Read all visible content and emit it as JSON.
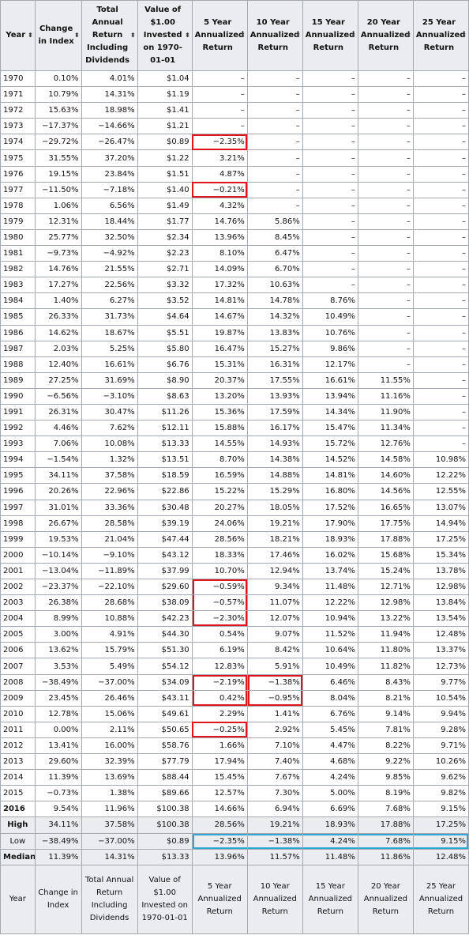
{
  "headers": [
    "Year",
    "Change in Index",
    "Total Annual Return Including Dividends",
    "Value of $1.00 Invested on 1970-01-01",
    "5 Year Annualized Return",
    "10 Year Annualized Return",
    "15 Year Annualized Return",
    "20 Year Annualized Return",
    "25 Year Annualized Return"
  ],
  "sort_icon": "sort-arrows-icon",
  "rows": [
    [
      "1970",
      "0.10%",
      "4.01%",
      "$1.04",
      "–",
      "–",
      "–",
      "–",
      "–"
    ],
    [
      "1971",
      "10.79%",
      "14.31%",
      "$1.19",
      "–",
      "–",
      "–",
      "–",
      "–"
    ],
    [
      "1972",
      "15.63%",
      "18.98%",
      "$1.41",
      "–",
      "–",
      "–",
      "–",
      "–"
    ],
    [
      "1973",
      "−17.37%",
      "−14.66%",
      "$1.21",
      "–",
      "–",
      "–",
      "–",
      "–"
    ],
    [
      "1974",
      "−29.72%",
      "−26.47%",
      "$0.89",
      "−2.35%",
      "–",
      "–",
      "–",
      "–"
    ],
    [
      "1975",
      "31.55%",
      "37.20%",
      "$1.22",
      "3.21%",
      "–",
      "–",
      "–",
      "–"
    ],
    [
      "1976",
      "19.15%",
      "23.84%",
      "$1.51",
      "4.87%",
      "–",
      "–",
      "–",
      "–"
    ],
    [
      "1977",
      "−11.50%",
      "−7.18%",
      "$1.40",
      "−0.21%",
      "–",
      "–",
      "–",
      "–"
    ],
    [
      "1978",
      "1.06%",
      "6.56%",
      "$1.49",
      "4.32%",
      "–",
      "–",
      "–",
      "–"
    ],
    [
      "1979",
      "12.31%",
      "18.44%",
      "$1.77",
      "14.76%",
      "5.86%",
      "–",
      "–",
      "–"
    ],
    [
      "1980",
      "25.77%",
      "32.50%",
      "$2.34",
      "13.96%",
      "8.45%",
      "–",
      "–",
      "–"
    ],
    [
      "1981",
      "−9.73%",
      "−4.92%",
      "$2.23",
      "8.10%",
      "6.47%",
      "–",
      "–",
      "–"
    ],
    [
      "1982",
      "14.76%",
      "21.55%",
      "$2.71",
      "14.09%",
      "6.70%",
      "–",
      "–",
      "–"
    ],
    [
      "1983",
      "17.27%",
      "22.56%",
      "$3.32",
      "17.32%",
      "10.63%",
      "–",
      "–",
      "–"
    ],
    [
      "1984",
      "1.40%",
      "6.27%",
      "$3.52",
      "14.81%",
      "14.78%",
      "8.76%",
      "–",
      "–"
    ],
    [
      "1985",
      "26.33%",
      "31.73%",
      "$4.64",
      "14.67%",
      "14.32%",
      "10.49%",
      "–",
      "–"
    ],
    [
      "1986",
      "14.62%",
      "18.67%",
      "$5.51",
      "19.87%",
      "13.83%",
      "10.76%",
      "–",
      "–"
    ],
    [
      "1987",
      "2.03%",
      "5.25%",
      "$5.80",
      "16.47%",
      "15.27%",
      "9.86%",
      "–",
      "–"
    ],
    [
      "1988",
      "12.40%",
      "16.61%",
      "$6.76",
      "15.31%",
      "16.31%",
      "12.17%",
      "–",
      "–"
    ],
    [
      "1989",
      "27.25%",
      "31.69%",
      "$8.90",
      "20.37%",
      "17.55%",
      "16.61%",
      "11.55%",
      "–"
    ],
    [
      "1990",
      "−6.56%",
      "−3.10%",
      "$8.63",
      "13.20%",
      "13.93%",
      "13.94%",
      "11.16%",
      "–"
    ],
    [
      "1991",
      "26.31%",
      "30.47%",
      "$11.26",
      "15.36%",
      "17.59%",
      "14.34%",
      "11.90%",
      "–"
    ],
    [
      "1992",
      "4.46%",
      "7.62%",
      "$12.11",
      "15.88%",
      "16.17%",
      "15.47%",
      "11.34%",
      "–"
    ],
    [
      "1993",
      "7.06%",
      "10.08%",
      "$13.33",
      "14.55%",
      "14.93%",
      "15.72%",
      "12.76%",
      "–"
    ],
    [
      "1994",
      "−1.54%",
      "1.32%",
      "$13.51",
      "8.70%",
      "14.38%",
      "14.52%",
      "14.58%",
      "10.98%"
    ],
    [
      "1995",
      "34.11%",
      "37.58%",
      "$18.59",
      "16.59%",
      "14.88%",
      "14.81%",
      "14.60%",
      "12.22%"
    ],
    [
      "1996",
      "20.26%",
      "22.96%",
      "$22.86",
      "15.22%",
      "15.29%",
      "16.80%",
      "14.56%",
      "12.55%"
    ],
    [
      "1997",
      "31.01%",
      "33.36%",
      "$30.48",
      "20.27%",
      "18.05%",
      "17.52%",
      "16.65%",
      "13.07%"
    ],
    [
      "1998",
      "26.67%",
      "28.58%",
      "$39.19",
      "24.06%",
      "19.21%",
      "17.90%",
      "17.75%",
      "14.94%"
    ],
    [
      "1999",
      "19.53%",
      "21.04%",
      "$47.44",
      "28.56%",
      "18.21%",
      "18.93%",
      "17.88%",
      "17.25%"
    ],
    [
      "2000",
      "−10.14%",
      "−9.10%",
      "$43.12",
      "18.33%",
      "17.46%",
      "16.02%",
      "15.68%",
      "15.34%"
    ],
    [
      "2001",
      "−13.04%",
      "−11.89%",
      "$37.99",
      "10.70%",
      "12.94%",
      "13.74%",
      "15.24%",
      "13.78%"
    ],
    [
      "2002",
      "−23.37%",
      "−22.10%",
      "$29.60",
      "−0.59%",
      "9.34%",
      "11.48%",
      "12.71%",
      "12.98%"
    ],
    [
      "2003",
      "26.38%",
      "28.68%",
      "$38.09",
      "−0.57%",
      "11.07%",
      "12.22%",
      "12.98%",
      "13.84%"
    ],
    [
      "2004",
      "8.99%",
      "10.88%",
      "$42.23",
      "−2.30%",
      "12.07%",
      "10.94%",
      "13.22%",
      "13.54%"
    ],
    [
      "2005",
      "3.00%",
      "4.91%",
      "$44.30",
      "0.54%",
      "9.07%",
      "11.52%",
      "11.94%",
      "12.48%"
    ],
    [
      "2006",
      "13.62%",
      "15.79%",
      "$51.30",
      "6.19%",
      "8.42%",
      "10.64%",
      "11.80%",
      "13.37%"
    ],
    [
      "2007",
      "3.53%",
      "5.49%",
      "$54.12",
      "12.83%",
      "5.91%",
      "10.49%",
      "11.82%",
      "12.73%"
    ],
    [
      "2008",
      "−38.49%",
      "−37.00%",
      "$34.09",
      "−2.19%",
      "−1.38%",
      "6.46%",
      "8.43%",
      "9.77%"
    ],
    [
      "2009",
      "23.45%",
      "26.46%",
      "$43.11",
      "0.42%",
      "−0.95%",
      "8.04%",
      "8.21%",
      "10.54%"
    ],
    [
      "2010",
      "12.78%",
      "15.06%",
      "$49.61",
      "2.29%",
      "1.41%",
      "6.76%",
      "9.14%",
      "9.94%"
    ],
    [
      "2011",
      "0.00%",
      "2.11%",
      "$50.65",
      "−0.25%",
      "2.92%",
      "5.45%",
      "7.81%",
      "9.28%"
    ],
    [
      "2012",
      "13.41%",
      "16.00%",
      "$58.76",
      "1.66%",
      "7.10%",
      "4.47%",
      "8.22%",
      "9.71%"
    ],
    [
      "2013",
      "29.60%",
      "32.39%",
      "$77.79",
      "17.94%",
      "7.40%",
      "4.68%",
      "9.22%",
      "10.26%"
    ],
    [
      "2014",
      "11.39%",
      "13.69%",
      "$88.44",
      "15.45%",
      "7.67%",
      "4.24%",
      "9.85%",
      "9.62%"
    ],
    [
      "2015",
      "−0.73%",
      "1.38%",
      "$89.66",
      "12.57%",
      "7.30%",
      "5.00%",
      "8.19%",
      "9.82%"
    ],
    [
      "2016",
      "9.54%",
      "11.96%",
      "$100.38",
      "14.66%",
      "6.94%",
      "6.69%",
      "7.68%",
      "9.15%"
    ]
  ],
  "summary": [
    [
      "High",
      "34.11%",
      "37.58%",
      "$100.38",
      "28.56%",
      "19.21%",
      "18.93%",
      "17.88%",
      "17.25%"
    ],
    [
      "Low",
      "−38.49%",
      "−37.00%",
      "$0.89",
      "−2.35%",
      "−1.38%",
      "4.24%",
      "7.68%",
      "9.15%"
    ],
    [
      "Median",
      "11.39%",
      "14.31%",
      "$13.33",
      "13.96%",
      "11.57%",
      "11.48%",
      "11.86%",
      "12.48%"
    ]
  ],
  "highlight_colors": {
    "red": "#e0151b",
    "blue": "#2ea7d7"
  }
}
